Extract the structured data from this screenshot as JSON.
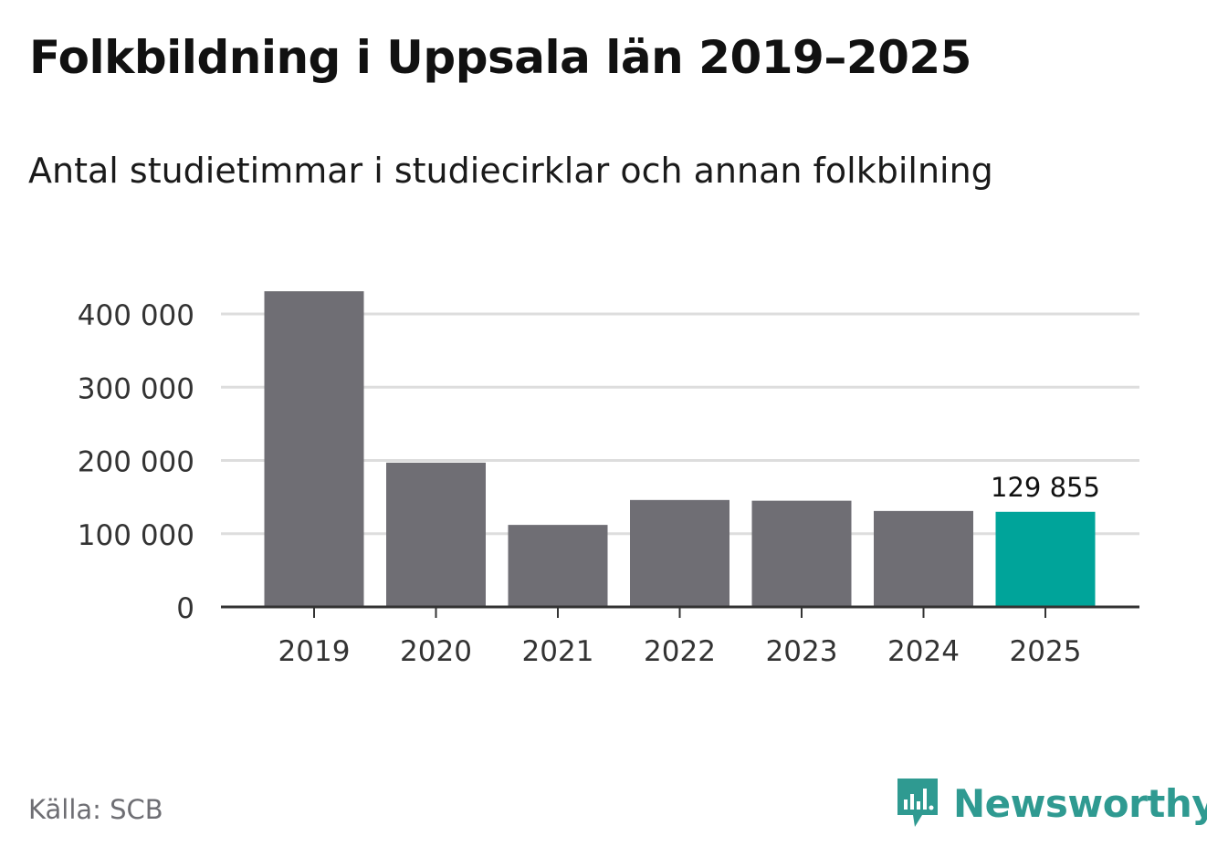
{
  "title": "Folkbildning i Uppsala län 2019–2025",
  "subtitle": "Antal studietimmar i studiecirklar och annan folkbilning",
  "source": "Källa: SCB",
  "brand": {
    "name": "Newsworthy",
    "icon": "newsworthy-logo-icon",
    "color": "#2f9a91"
  },
  "colors": {
    "bar": "#6f6e74",
    "highlight": "#00a49a",
    "grid": "#dddddd",
    "axis": "#333333"
  },
  "chart_data": {
    "type": "bar",
    "categories": [
      "2019",
      "2020",
      "2021",
      "2022",
      "2023",
      "2024",
      "2025"
    ],
    "values": [
      431000,
      197000,
      112000,
      146000,
      145000,
      131000,
      129855
    ],
    "highlight_index": 6,
    "data_labels": [
      {
        "index": 6,
        "text": "129 855"
      }
    ],
    "ylim": [
      0,
      400000
    ],
    "yticks": [
      0,
      100000,
      200000,
      300000,
      400000
    ],
    "ytick_labels": [
      "0",
      "100 000",
      "200 000",
      "300 000",
      "400 000"
    ],
    "xlabel": "",
    "ylabel": "",
    "grid": true
  }
}
